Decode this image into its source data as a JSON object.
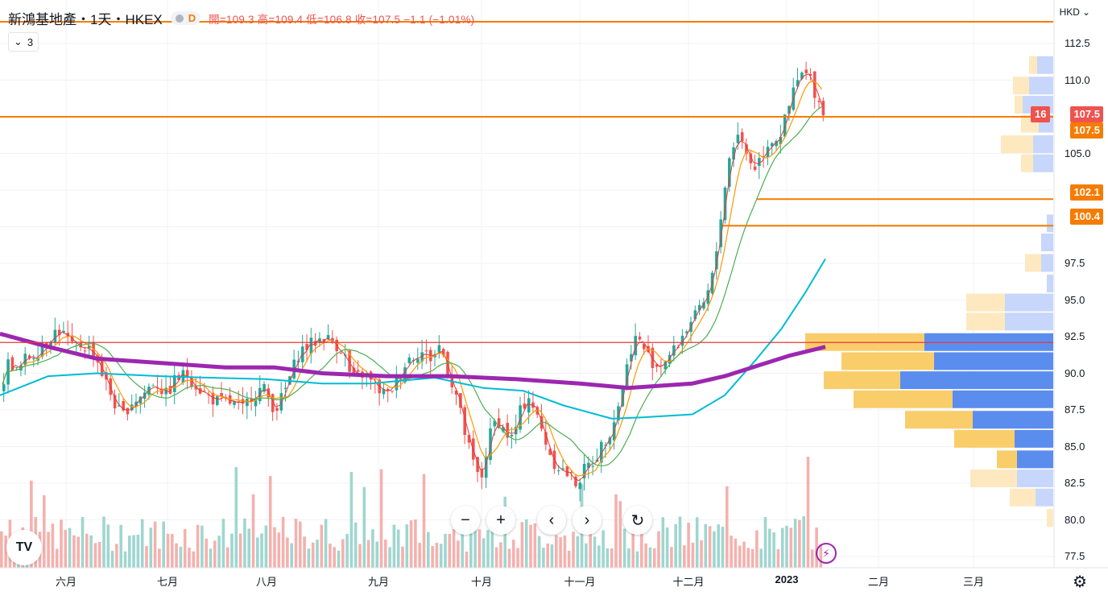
{
  "header": {
    "title": "新鴻基地產・1天・HKEX",
    "indicator_letter": "D",
    "ohlc_text": "開=109.3  高=109.4  低=106.8  收=107.5  −1.1  (−1.01%)",
    "indicators_count": "3",
    "currency": "HKD"
  },
  "price_axis": {
    "ticks": [
      "112.5",
      "110.0",
      "105.0",
      "97.5",
      "95.0",
      "92.5",
      "90.0",
      "87.5",
      "85.0",
      "82.5",
      "80.0",
      "77.5"
    ]
  },
  "price_labels": {
    "last_price": "107.5",
    "last_price_count": "16",
    "ma_value": "107.5",
    "level_1": "102.1",
    "level_2": "100.4"
  },
  "time_axis": {
    "labels": [
      "六月",
      "七月",
      "八月",
      "九月",
      "十月",
      "十一月",
      "十二月",
      "2023",
      "二月",
      "三月"
    ]
  },
  "colors": {
    "up": "#26a69a",
    "down": "#ef5350",
    "orange_line": "#f57c00",
    "ma_purple": "#9c27b0",
    "ma_cyan": "#00bcd4",
    "ma_green": "#4caf50",
    "ma_orange": "#ff9800",
    "vp_up": "#5b8def",
    "vp_down": "#f9cd6a"
  },
  "chart_data": {
    "type": "candlestick",
    "symbol": "新鴻基地產",
    "interval": "1天",
    "exchange": "HKEX",
    "currency": "HKD",
    "ylim": [
      76.5,
      114.5
    ],
    "x_labels": [
      "六月",
      "七月",
      "八月",
      "九月",
      "十月",
      "十一月",
      "十二月",
      "2023",
      "二月",
      "三月"
    ],
    "last": {
      "open": 109.3,
      "high": 109.4,
      "low": 106.8,
      "close": 107.5,
      "change": -1.1,
      "change_pct": -1.01
    },
    "horizontal_levels": [
      114.5,
      107.5,
      102.1,
      100.4,
      92.1
    ],
    "path_points": [
      [
        0,
        89.0
      ],
      [
        10,
        91.0
      ],
      [
        20,
        90.0
      ],
      [
        30,
        91.0
      ],
      [
        45,
        91.5
      ],
      [
        60,
        92.5
      ],
      [
        70,
        93.0
      ],
      [
        80,
        92.5
      ],
      [
        90,
        91.5
      ],
      [
        100,
        92.0
      ],
      [
        115,
        91.5
      ],
      [
        125,
        90.0
      ],
      [
        140,
        88.0
      ],
      [
        150,
        87.0
      ],
      [
        160,
        88.0
      ],
      [
        175,
        88.5
      ],
      [
        190,
        89.5
      ],
      [
        205,
        88.5
      ],
      [
        215,
        89.5
      ],
      [
        230,
        90.0
      ],
      [
        245,
        89.0
      ],
      [
        255,
        88.5
      ],
      [
        270,
        88.0
      ],
      [
        285,
        88.0
      ],
      [
        300,
        87.5
      ],
      [
        310,
        88.5
      ],
      [
        325,
        89.0
      ],
      [
        340,
        87.5
      ],
      [
        350,
        88.5
      ],
      [
        360,
        90.0
      ],
      [
        370,
        91.5
      ],
      [
        385,
        92.0
      ],
      [
        400,
        92.5
      ],
      [
        415,
        92.0
      ],
      [
        425,
        91.5
      ],
      [
        435,
        89.5
      ],
      [
        450,
        90.0
      ],
      [
        465,
        89.0
      ],
      [
        480,
        88.5
      ],
      [
        490,
        89.5
      ],
      [
        505,
        91.0
      ],
      [
        520,
        91.5
      ],
      [
        535,
        91.0
      ],
      [
        545,
        92.0
      ],
      [
        555,
        90.0
      ],
      [
        565,
        88.5
      ],
      [
        575,
        86.0
      ],
      [
        585,
        84.0
      ],
      [
        595,
        82.5
      ],
      [
        605,
        85.5
      ],
      [
        615,
        87.0
      ],
      [
        625,
        86.0
      ],
      [
        635,
        85.5
      ],
      [
        645,
        87.5
      ],
      [
        655,
        88.5
      ],
      [
        665,
        87.0
      ],
      [
        675,
        85.5
      ],
      [
        685,
        84.0
      ],
      [
        695,
        83.5
      ],
      [
        705,
        83.0
      ],
      [
        715,
        82.5
      ],
      [
        725,
        83.5
      ],
      [
        735,
        84.0
      ],
      [
        745,
        85.0
      ],
      [
        755,
        86.0
      ],
      [
        765,
        87.5
      ],
      [
        775,
        90.0
      ],
      [
        785,
        92.5
      ],
      [
        795,
        92.0
      ],
      [
        805,
        91.0
      ],
      [
        815,
        90.5
      ],
      [
        825,
        91.0
      ],
      [
        835,
        91.5
      ],
      [
        845,
        92.5
      ],
      [
        855,
        93.5
      ],
      [
        865,
        94.0
      ],
      [
        875,
        95.0
      ],
      [
        885,
        97.0
      ],
      [
        895,
        101.5
      ],
      [
        905,
        105.0
      ],
      [
        915,
        106.5
      ],
      [
        925,
        105.0
      ],
      [
        935,
        104.0
      ],
      [
        945,
        105.0
      ],
      [
        955,
        106.0
      ],
      [
        965,
        106.0
      ],
      [
        975,
        107.5
      ],
      [
        985,
        109.5
      ],
      [
        995,
        110.5
      ],
      [
        1005,
        110.0
      ],
      [
        1015,
        108.5
      ],
      [
        1025,
        107.5
      ]
    ],
    "volume_profile_rows": [
      {
        "price": 111.0,
        "up": 20,
        "down": 10
      },
      {
        "price": 109.6,
        "up": 30,
        "down": 20
      },
      {
        "price": 108.3,
        "up": 38,
        "down": 10
      },
      {
        "price": 107.0,
        "up": 18,
        "down": 22
      },
      {
        "price": 105.6,
        "up": 25,
        "down": 40
      },
      {
        "price": 104.3,
        "up": 25,
        "down": 15
      },
      {
        "price": 100.2,
        "up": 8,
        "down": 0
      },
      {
        "price": 98.9,
        "up": 15,
        "down": 0
      },
      {
        "price": 97.5,
        "up": 15,
        "down": 20
      },
      {
        "price": 96.1,
        "up": 8,
        "down": 0
      },
      {
        "price": 94.8,
        "up": 60,
        "down": 48
      },
      {
        "price": 93.5,
        "up": 60,
        "down": 48
      },
      {
        "price": 92.1,
        "up": 160,
        "down": 148
      },
      {
        "price": 90.8,
        "up": 148,
        "down": 115
      },
      {
        "price": 89.5,
        "up": 190,
        "down": 95
      },
      {
        "price": 88.2,
        "up": 125,
        "down": 123
      },
      {
        "price": 86.8,
        "up": 100,
        "down": 84
      },
      {
        "price": 85.5,
        "up": 48,
        "down": 75
      },
      {
        "price": 84.1,
        "up": 45,
        "down": 25
      },
      {
        "price": 82.8,
        "up": 45,
        "down": 58
      },
      {
        "price": 81.5,
        "up": 22,
        "down": 32
      },
      {
        "price": 80.1,
        "up": 0,
        "down": 8
      }
    ]
  }
}
